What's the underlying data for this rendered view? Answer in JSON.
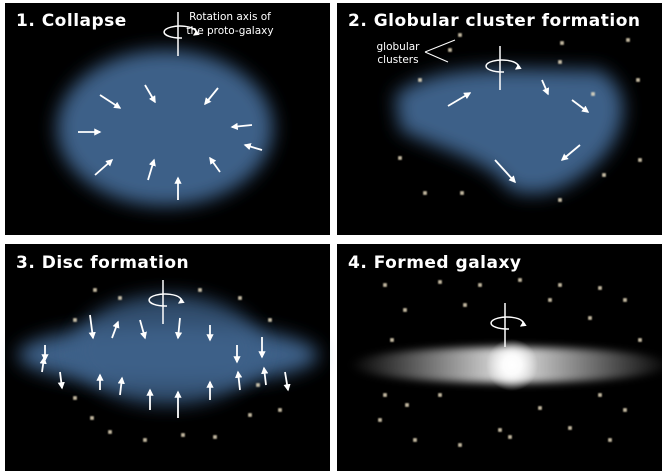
{
  "panels": [
    {
      "title": "1. Collapse",
      "annotation": [
        "Rotation axis of",
        "the proto-galaxy"
      ]
    },
    {
      "title": "2. Globular cluster formation",
      "annotation": [
        "globular",
        "clusters"
      ]
    },
    {
      "title": "3. Disc formation"
    },
    {
      "title": "4. Formed galaxy"
    }
  ]
}
